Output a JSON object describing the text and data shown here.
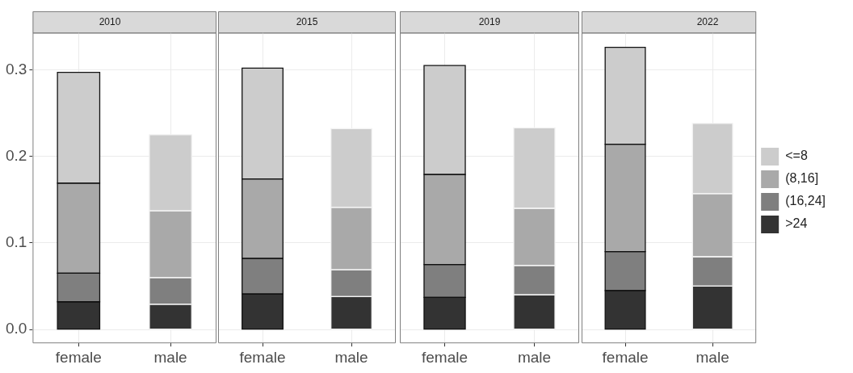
{
  "chart_data": [
    {
      "type": "bar",
      "title": "2010",
      "categories": [
        "female",
        "male"
      ],
      "stacked": true,
      "ylim": [
        -0.016,
        0.343
      ],
      "yticks": [
        {
          "value": 0,
          "label": "0.0"
        },
        {
          "value": 0.1,
          "label": "0.1"
        },
        {
          "value": 0.2,
          "label": "0.2"
        },
        {
          "value": 0.3,
          "label": "0.3"
        }
      ],
      "grid": true,
      "series": [
        {
          "color": "#333333",
          "values": [
            0.032,
            0.029
          ]
        },
        {
          "color": "#7f7f7f",
          "values": [
            0.033,
            0.031
          ]
        },
        {
          "color": "#a9a9a9",
          "values": [
            0.104,
            0.077
          ]
        },
        {
          "color": "#cccccc",
          "values": [
            0.128,
            0.088
          ]
        }
      ]
    },
    {
      "type": "bar",
      "title": "2015",
      "categories": [
        "female",
        "male"
      ],
      "stacked": true,
      "ylim": [
        -0.016,
        0.343
      ],
      "yticks": [
        0,
        0.1,
        0.2,
        0.3
      ],
      "grid": true,
      "tick_labels": "x",
      "series": [
        {
          "color": "#333333",
          "values": [
            0.041,
            0.038
          ]
        },
        {
          "color": "#7f7f7f",
          "values": [
            0.041,
            0.031
          ]
        },
        {
          "color": "#a9a9a9",
          "values": [
            0.092,
            0.072
          ]
        },
        {
          "color": "#cccccc",
          "values": [
            0.128,
            0.091
          ]
        }
      ]
    },
    {
      "type": "bar",
      "title": "2019",
      "categories": [
        "female",
        "male"
      ],
      "stacked": true,
      "ylim": [
        -0.016,
        0.343
      ],
      "yticks": [
        0,
        0.1,
        0.2,
        0.3
      ],
      "grid": true,
      "tick_labels": "x",
      "series": [
        {
          "color": "#333333",
          "values": [
            0.037,
            0.04
          ]
        },
        {
          "color": "#7f7f7f",
          "values": [
            0.038,
            0.034
          ]
        },
        {
          "color": "#a9a9a9",
          "values": [
            0.104,
            0.066
          ]
        },
        {
          "color": "#cccccc",
          "values": [
            0.126,
            0.093
          ]
        }
      ]
    },
    {
      "type": "bar",
      "title": "2022",
      "categories": [
        "female",
        "male"
      ],
      "stacked": true,
      "ylim": [
        -0.016,
        0.343
      ],
      "yticks": [
        0,
        0.1,
        0.2,
        0.3
      ],
      "grid": true,
      "tick_labels": "x",
      "legend": "right",
      "series": [
        {
          "name": ">24",
          "color": "#333333",
          "values": [
            0.045,
            0.05
          ]
        },
        {
          "name": "(16,24]",
          "color": "#7f7f7f",
          "values": [
            0.045,
            0.034
          ]
        },
        {
          "name": "(8,16]",
          "color": "#a9a9a9",
          "values": [
            0.124,
            0.073
          ]
        },
        {
          "name": "<=8",
          "color": "#cccccc",
          "values": [
            0.112,
            0.081
          ]
        }
      ]
    }
  ]
}
